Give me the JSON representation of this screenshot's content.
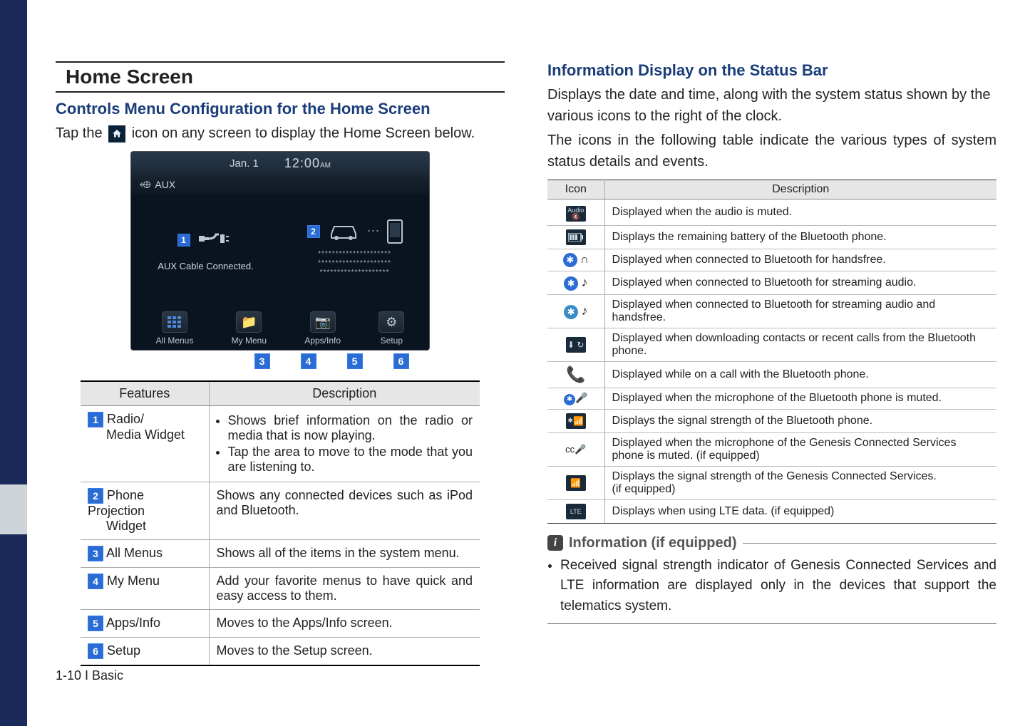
{
  "colors": {
    "left_bar": "#1a2a5a",
    "gray_tab": "#cfd4db",
    "heading_blue": "#1a3d7a",
    "badge_blue": "#2a6cd4",
    "device_bg": "#0a1420",
    "table_header_bg": "#e6e6e6"
  },
  "left": {
    "page_title": "Home Screen",
    "subheading": "Controls Menu Configuration for the Home Screen",
    "tap_pre": "Tap the ",
    "tap_post": " icon on any screen to display the Home Screen below.",
    "device": {
      "date": "Jan.  1",
      "time": "12:00",
      "ampm": "AM",
      "aux_label": "AUX",
      "aux_connected": "AUX Cable Connected.",
      "stars_row1": "*********************",
      "stars_row2": "*********************",
      "stars_row3": "********************",
      "badges": [
        "1",
        "2",
        "3",
        "4",
        "5",
        "6"
      ],
      "buttons": [
        {
          "label": "All Menus",
          "icon": "grid"
        },
        {
          "label": "My Menu",
          "icon": "folder"
        },
        {
          "label": "Apps/Info",
          "icon": "info"
        },
        {
          "label": "Setup",
          "icon": "gear"
        }
      ]
    },
    "features": {
      "headers": [
        "Features",
        "Description"
      ],
      "rows": [
        {
          "num": "1",
          "title": "Radio/\nMedia Widget",
          "bullets": [
            "Shows brief information on the radio or media that is now playing.",
            "Tap the area to move to the mode that you are listening to."
          ]
        },
        {
          "num": "2",
          "title": "Phone Projection\nWidget",
          "text": "Shows any connected devices such as iPod and Bluetooth."
        },
        {
          "num": "3",
          "title": "All Menus",
          "text": "Shows all of the items in the system menu."
        },
        {
          "num": "4",
          "title": "My Menu",
          "text": "Add your favorite menus to have quick and easy access to them."
        },
        {
          "num": "5",
          "title": "Apps/Info",
          "text": "Moves to the Apps/Info screen."
        },
        {
          "num": "6",
          "title": "Setup",
          "text": "Moves to the Setup screen."
        }
      ]
    }
  },
  "right": {
    "heading": "Information Display on the Status Bar",
    "para1": "Displays the date and time, along with the system status shown by the various icons to the right of the clock.",
    "para2": "The icons in the following table indicate the various types of system status details and events.",
    "table": {
      "headers": [
        "Icon",
        "Description"
      ],
      "rows": [
        {
          "icon": "audio-mute",
          "desc": "Displayed when the audio is muted."
        },
        {
          "icon": "battery",
          "desc": "Displays the remaining battery of the Bluetooth phone."
        },
        {
          "icon": "bt-handsfree",
          "desc": "Displayed when connected to Bluetooth for handsfree."
        },
        {
          "icon": "bt-audio",
          "desc": "Displayed when connected to Bluetooth for streaming audio."
        },
        {
          "icon": "bt-both",
          "desc": "Displayed when connected to Bluetooth for streaming audio and handsfree."
        },
        {
          "icon": "bt-download",
          "desc": "Displayed when downloading contacts or recent calls from the Bluetooth phone."
        },
        {
          "icon": "bt-call",
          "desc": "Displayed while on a call with the Bluetooth phone."
        },
        {
          "icon": "bt-mic-mute",
          "desc": "Displayed when the microphone of the Bluetooth phone is muted."
        },
        {
          "icon": "bt-signal",
          "desc": "Displays the signal strength of the Bluetooth phone."
        },
        {
          "icon": "cc-mic-mute",
          "desc": "Displayed when the microphone of the Genesis Connected Services phone is muted. (if equipped)"
        },
        {
          "icon": "cc-signal",
          "desc": "Displays the signal strength of the Genesis Connected Services.\n(if equipped)"
        },
        {
          "icon": "lte",
          "desc": "Displays when using LTE data. (if equipped)"
        }
      ]
    },
    "info_title": "Information (if equipped)",
    "info_bullet": "Received signal strength indicator of Genesis Connected Services and LTE information are displayed only in the devices that support the telematics system."
  },
  "footer": "1-10 I Basic"
}
